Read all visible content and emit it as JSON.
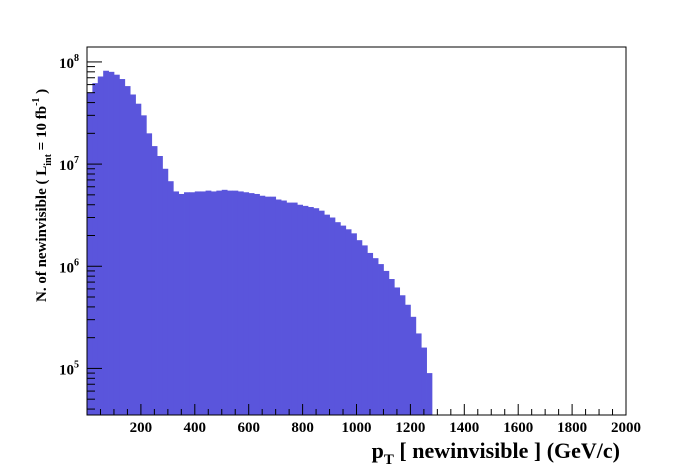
{
  "chart_data": {
    "type": "bar",
    "title": "",
    "xlabel": {
      "main": "p",
      "sub": "T",
      "rest": " [ newinvisible ] (GeV/c)"
    },
    "ylabel": {
      "part1": "N. of newinvisible ( L",
      "sub": "int",
      "part2": " = 10 fb",
      "sup": "-1",
      "part3": " )"
    },
    "xlim": [
      0,
      2000
    ],
    "ylim": [
      35000,
      140000000
    ],
    "log_y": true,
    "grid": false,
    "bar_color": "#5a55dc",
    "bin_width": 20,
    "x_ticks": [
      200,
      400,
      600,
      800,
      1000,
      1200,
      1400,
      1600,
      1800,
      2000
    ],
    "y_ticks": [
      {
        "value": 100000,
        "base": "10",
        "exp": "5"
      },
      {
        "value": 1000000,
        "base": "10",
        "exp": "6"
      },
      {
        "value": 10000000,
        "base": "10",
        "exp": "7"
      },
      {
        "value": 100000000,
        "base": "10",
        "exp": "8"
      }
    ],
    "x": [
      10,
      30,
      50,
      70,
      90,
      110,
      130,
      150,
      170,
      190,
      210,
      230,
      250,
      270,
      290,
      310,
      330,
      350,
      370,
      390,
      410,
      430,
      450,
      470,
      490,
      510,
      530,
      550,
      570,
      590,
      610,
      630,
      650,
      670,
      690,
      710,
      730,
      750,
      770,
      790,
      810,
      830,
      850,
      870,
      890,
      910,
      930,
      950,
      970,
      990,
      1010,
      1030,
      1050,
      1070,
      1090,
      1110,
      1130,
      1150,
      1170,
      1190,
      1210,
      1230,
      1250,
      1270,
      1290,
      1310,
      1330,
      1350,
      1370,
      1390,
      1410,
      1430,
      1450,
      1470,
      1490,
      1510,
      1530,
      1550,
      1570,
      1590,
      1610,
      1630,
      1650,
      1670,
      1690,
      1710,
      1730,
      1750,
      1770,
      1790,
      1810,
      1830,
      1850,
      1870,
      1890,
      1910,
      1930,
      1950,
      1970,
      1990
    ],
    "values": [
      50000000,
      62000000,
      72000000,
      82000000,
      80000000,
      75000000,
      68000000,
      58000000,
      48000000,
      39000000,
      30000000,
      20000000,
      15000000,
      12000000,
      9000000,
      6800000,
      5400000,
      5100000,
      5300000,
      5300000,
      5400000,
      5400000,
      5500000,
      5400000,
      5500000,
      5600000,
      5500000,
      5500000,
      5400000,
      5300000,
      5200000,
      5100000,
      4900000,
      4800000,
      4800000,
      4500000,
      4400000,
      4200000,
      4200000,
      4000000,
      3900000,
      3800000,
      3700000,
      3500000,
      3200000,
      3000000,
      2700000,
      2500000,
      2300000,
      2100000,
      1800000,
      1600000,
      1350000,
      1200000,
      1050000,
      900000,
      750000,
      620000,
      520000,
      420000,
      320000,
      220000,
      160000,
      90000,
      30000,
      5000,
      2000,
      1000,
      1000,
      1000,
      1000,
      1000,
      1000,
      1000,
      1000,
      1000,
      1000,
      1000,
      1000,
      1000,
      1000,
      1000,
      1000,
      1000,
      1000,
      1000,
      1000,
      1000,
      1000,
      1000,
      1000,
      1000,
      1000,
      1000,
      1000,
      1000,
      1000,
      1000,
      1000,
      1000
    ]
  }
}
